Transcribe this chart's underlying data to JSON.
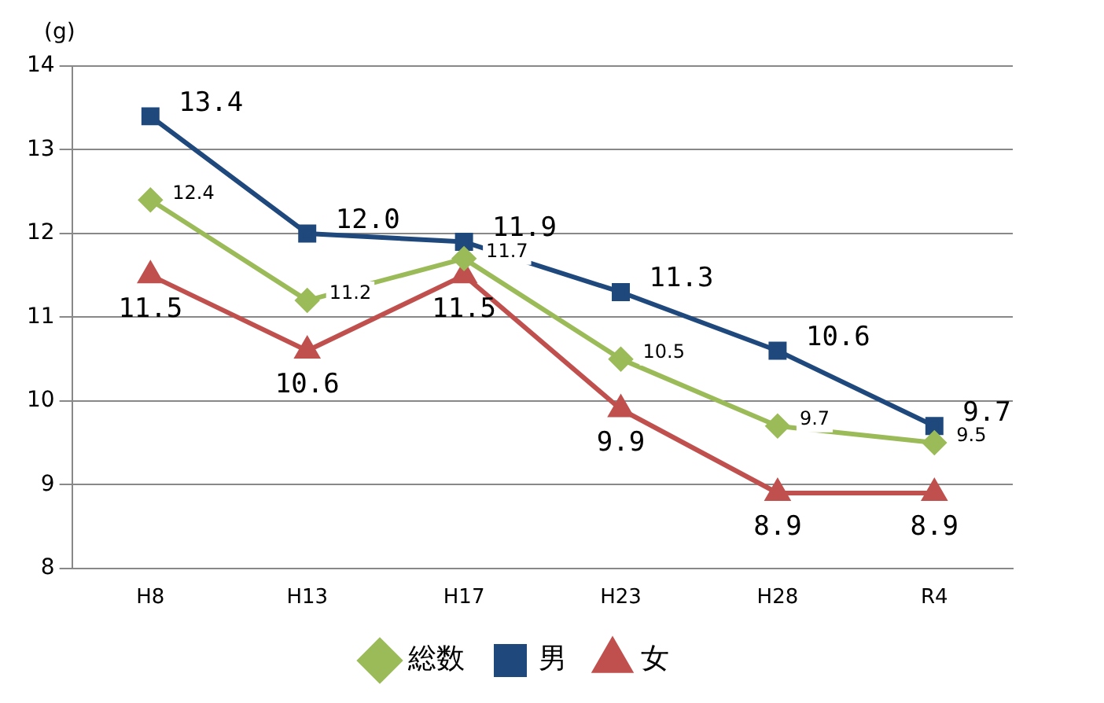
{
  "chart_data": {
    "type": "line",
    "ylabel": "(g)",
    "categories": [
      "H8",
      "H13",
      "H17",
      "H23",
      "H28",
      "R4"
    ],
    "series": [
      {
        "name": "総数",
        "color": "#9bbb59",
        "marker": "diamond",
        "values": [
          12.4,
          11.2,
          11.7,
          10.5,
          9.7,
          9.5
        ],
        "value_labels": [
          "12.4",
          "11.2",
          "11.7",
          "10.5",
          "9.7",
          "9.5"
        ]
      },
      {
        "name": "男",
        "color": "#1f497d",
        "marker": "square",
        "values": [
          13.4,
          12.0,
          11.9,
          11.3,
          10.6,
          9.7
        ],
        "value_labels": [
          "13.4",
          "12.0",
          "11.9",
          "11.3",
          "10.6",
          "9.7"
        ]
      },
      {
        "name": "女",
        "color": "#c0504d",
        "marker": "triangle",
        "values": [
          11.5,
          10.6,
          11.5,
          9.9,
          8.9,
          8.9
        ],
        "value_labels": [
          "11.5",
          "10.6",
          "11.5",
          "9.9",
          "8.9",
          "8.9"
        ]
      }
    ],
    "ylim": [
      8,
      14
    ],
    "yticks": [
      8,
      9,
      10,
      11,
      12,
      13,
      14
    ],
    "grid": "y",
    "legend": "bottom",
    "line_style": "solid"
  }
}
